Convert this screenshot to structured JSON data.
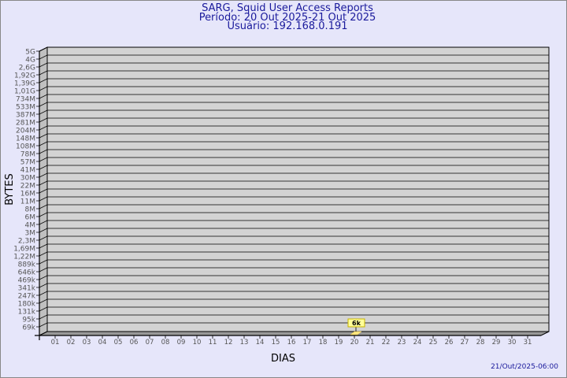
{
  "title": [
    "SARG, Squid User Access Reports",
    "Período: 20 Out 2025-21 Out 2025",
    "Usuário: 192.168.0.191"
  ],
  "footer": "21/Out/2025-06:00",
  "chart_data": {
    "type": "bar",
    "xlabel": "DIAS",
    "ylabel": "BYTES",
    "y_scale": "log",
    "y_tick_labels": [
      "5G",
      "4G",
      "2,6G",
      "1,92G",
      "1,39G",
      "1,01G",
      "734M",
      "533M",
      "387M",
      "281M",
      "204M",
      "148M",
      "108M",
      "78M",
      "57M",
      "41M",
      "30M",
      "22M",
      "16M",
      "11M",
      "8M",
      "6M",
      "4M",
      "3M",
      "2,3M",
      "1,69M",
      "1,22M",
      "889k",
      "646k",
      "469k",
      "341k",
      "247k",
      "180k",
      "131k",
      "95k",
      "69k"
    ],
    "categories": [
      "01",
      "02",
      "03",
      "04",
      "05",
      "06",
      "07",
      "08",
      "09",
      "10",
      "11",
      "12",
      "13",
      "14",
      "15",
      "16",
      "17",
      "18",
      "19",
      "20",
      "21",
      "22",
      "23",
      "24",
      "25",
      "26",
      "27",
      "28",
      "29",
      "30",
      "31"
    ],
    "bars": [
      {
        "day": "20",
        "value_label": "6k"
      }
    ],
    "grid": true,
    "colors": {
      "wall": "#d3d3d3",
      "side": "#c0c0c0",
      "bar": "#ffe680",
      "label_bg": "#ffff99",
      "title": "#1a1a9c"
    }
  }
}
